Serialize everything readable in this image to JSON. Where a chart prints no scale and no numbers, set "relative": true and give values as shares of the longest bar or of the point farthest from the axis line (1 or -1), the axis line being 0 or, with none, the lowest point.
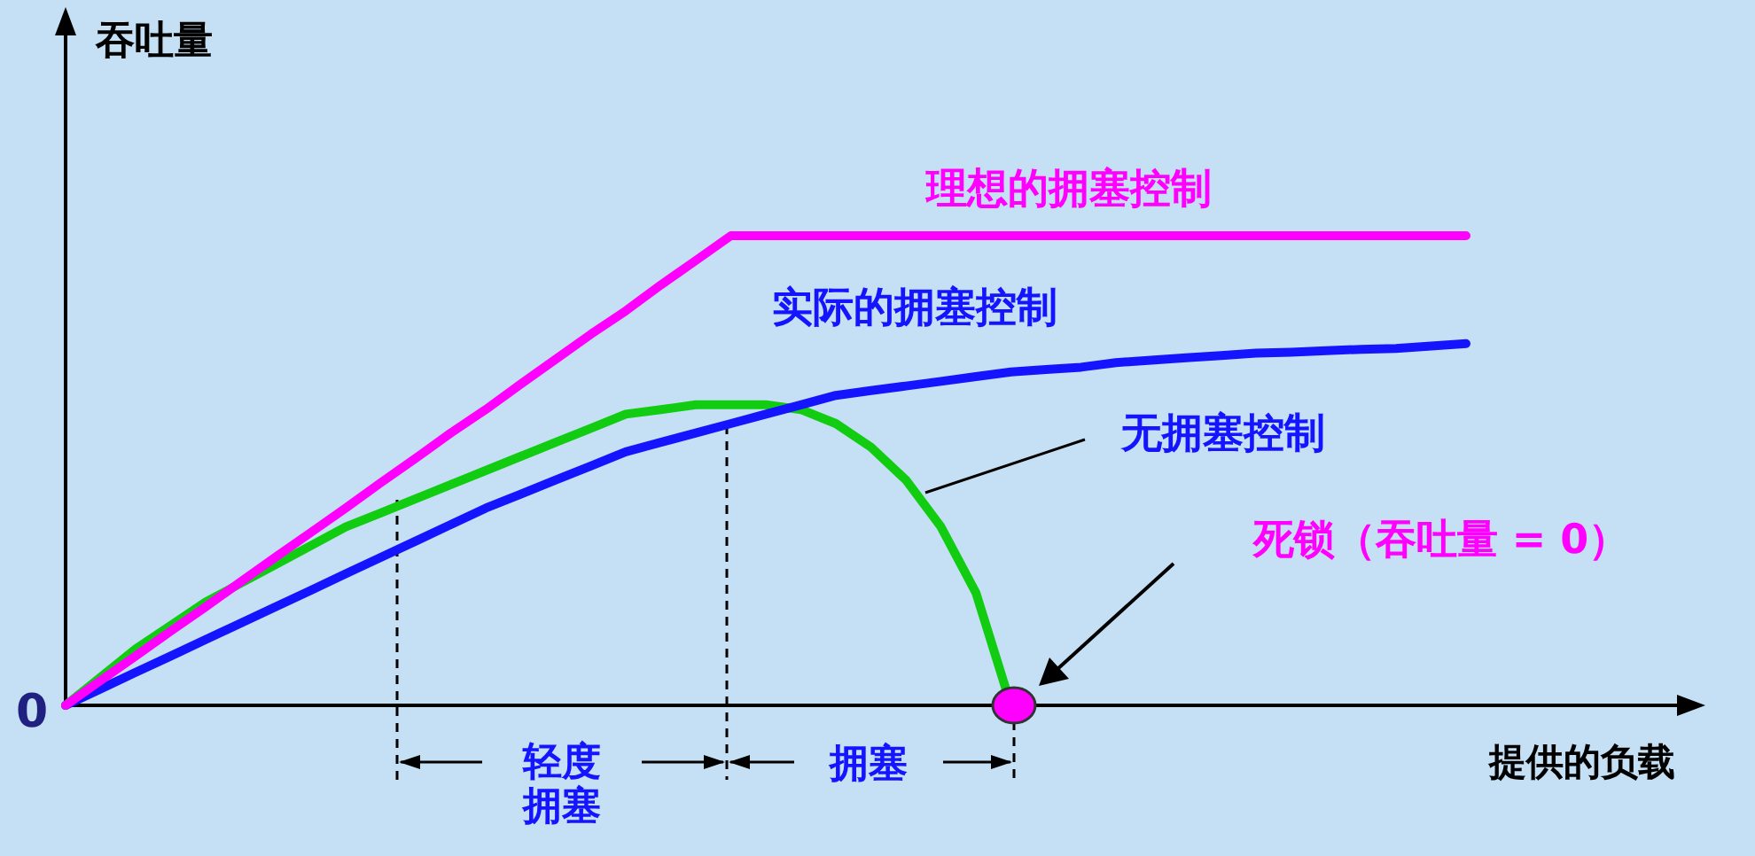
{
  "chart_data": {
    "type": "line",
    "relative": true,
    "ylabel": "吞吐量",
    "xlabel": "提供的负载",
    "categories": [
      null,
      null,
      null,
      null,
      null,
      null,
      null,
      null,
      null,
      null,
      null,
      null,
      null,
      null,
      null,
      null,
      null,
      null,
      null,
      null,
      null,
      null,
      null,
      null,
      null,
      null,
      null,
      null,
      null,
      null,
      null,
      null,
      null,
      null,
      null,
      null,
      null,
      null,
      null,
      null,
      null
    ],
    "series": [
      {
        "name": "理想的拥塞控制",
        "color": "#ff00ff",
        "values": [
          0,
          0.053,
          0.105,
          0.158,
          0.21,
          0.263,
          0.316,
          0.368,
          0.42,
          0.474,
          0.526,
          0.58,
          0.63,
          0.684,
          0.737,
          0.79,
          0.84,
          0.895,
          0.947,
          1,
          1,
          1,
          1,
          1,
          1,
          1,
          1,
          1,
          1,
          1,
          1,
          1,
          1,
          1,
          1,
          1,
          1,
          1,
          1,
          1,
          1
        ]
      },
      {
        "name": "实际的拥塞控制",
        "color": "#1414ff",
        "values": [
          0,
          0.035,
          0.07,
          0.105,
          0.14,
          0.175,
          0.21,
          0.245,
          0.28,
          0.315,
          0.35,
          0.385,
          0.42,
          0.45,
          0.48,
          0.51,
          0.54,
          0.56,
          0.58,
          0.6,
          0.62,
          0.64,
          0.66,
          0.67,
          0.68,
          0.69,
          0.7,
          0.71,
          0.715,
          0.72,
          0.73,
          0.735,
          0.74,
          0.745,
          0.75,
          0.752,
          0.755,
          0.758,
          0.76,
          0.765,
          0.77
        ]
      },
      {
        "name": "无拥塞控制",
        "color": "#11cc11",
        "values": [
          0,
          0.06,
          0.12,
          0.17,
          0.22,
          0.26,
          0.3,
          0.34,
          0.38,
          0.41,
          0.44,
          0.47,
          0.5,
          0.53,
          0.56,
          0.59,
          0.62,
          0.63,
          0.64,
          0.64,
          0.64,
          0.63,
          0.6,
          0.55,
          0.48,
          0.38,
          0.24,
          0,
          null,
          null,
          null,
          null,
          null,
          null,
          null,
          null,
          null,
          null,
          null,
          null,
          null
        ]
      }
    ],
    "annotations": [
      "0",
      "轻度拥塞",
      "拥塞",
      "死锁（吞吐量 = 0）"
    ]
  }
}
